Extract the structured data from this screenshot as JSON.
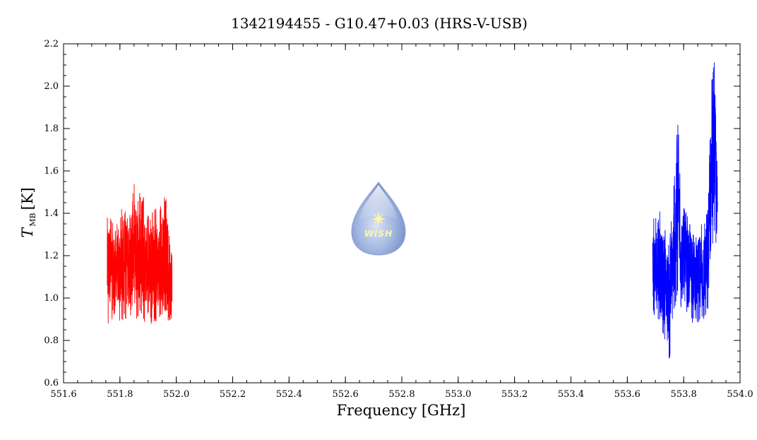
{
  "chart_data": {
    "type": "line",
    "title": "1342194455 - G10.47+0.03 (HRS-V-USB)",
    "xlabel": "Frequency [GHz]",
    "ylabel": {
      "symbol": "T",
      "subscript": "MB",
      "unit": "[K]"
    },
    "xlim": [
      551.6,
      554.0
    ],
    "ylim": [
      0.6,
      2.2
    ],
    "x_ticks": [
      551.6,
      551.8,
      552.0,
      552.2,
      552.4,
      552.6,
      552.8,
      553.0,
      553.2,
      553.4,
      553.6,
      553.8,
      554.0
    ],
    "x_tick_labels": [
      "551.6",
      "551.8",
      "552.0",
      "552.2",
      "552.4",
      "552.6",
      "552.8",
      "553.0",
      "553.2",
      "553.4",
      "553.6",
      "553.8",
      "554.0"
    ],
    "y_ticks": [
      0.6,
      0.8,
      1.0,
      1.2,
      1.4,
      1.6,
      1.8,
      2.0,
      2.2
    ],
    "y_tick_labels": [
      "0.6",
      "0.8",
      "1.0",
      "1.2",
      "1.4",
      "1.6",
      "1.8",
      "2.0",
      "2.2"
    ],
    "grid": false,
    "series": [
      {
        "color": "#ff0000",
        "x": [
          551.755,
          551.765,
          551.775,
          551.785,
          551.795,
          551.805,
          551.815,
          551.825,
          551.835,
          551.845,
          551.855,
          551.865,
          551.875,
          551.885,
          551.895,
          551.905,
          551.915,
          551.925,
          551.935,
          551.945,
          551.955,
          551.965,
          551.975,
          551.985
        ],
        "y_min": [
          0.84,
          0.92,
          0.88,
          0.95,
          0.9,
          0.86,
          0.92,
          0.88,
          0.9,
          0.95,
          0.87,
          0.91,
          0.93,
          0.88,
          0.92,
          0.9,
          0.86,
          0.89,
          0.88,
          0.92,
          0.87,
          0.84,
          0.9,
          0.82
        ],
        "y_max": [
          1.46,
          1.4,
          1.36,
          1.38,
          1.34,
          1.43,
          1.38,
          1.48,
          1.4,
          1.58,
          1.52,
          1.56,
          1.46,
          1.48,
          1.4,
          1.38,
          1.42,
          1.45,
          1.4,
          1.44,
          1.48,
          1.47,
          1.36,
          1.29
        ]
      },
      {
        "color": "#0000ff",
        "x": [
          553.69,
          553.7,
          553.71,
          553.72,
          553.73,
          553.74,
          553.75,
          553.76,
          553.77,
          553.78,
          553.79,
          553.8,
          553.81,
          553.82,
          553.83,
          553.84,
          553.85,
          553.86,
          553.87,
          553.88,
          553.89,
          553.9,
          553.91,
          553.92
        ],
        "y_min": [
          0.96,
          0.86,
          0.9,
          0.84,
          0.8,
          0.82,
          0.69,
          0.88,
          0.96,
          1.02,
          0.95,
          1.0,
          0.92,
          0.96,
          0.88,
          0.92,
          0.86,
          0.9,
          0.88,
          0.92,
          0.96,
          1.2,
          1.3,
          1.18
        ],
        "y_max": [
          1.4,
          1.36,
          1.51,
          1.36,
          1.38,
          1.28,
          1.28,
          1.42,
          1.66,
          1.85,
          1.48,
          1.44,
          1.4,
          1.36,
          1.42,
          1.3,
          1.32,
          1.38,
          1.36,
          1.4,
          1.64,
          2.04,
          2.14,
          1.62
        ]
      }
    ],
    "logo_text": "WISH"
  }
}
